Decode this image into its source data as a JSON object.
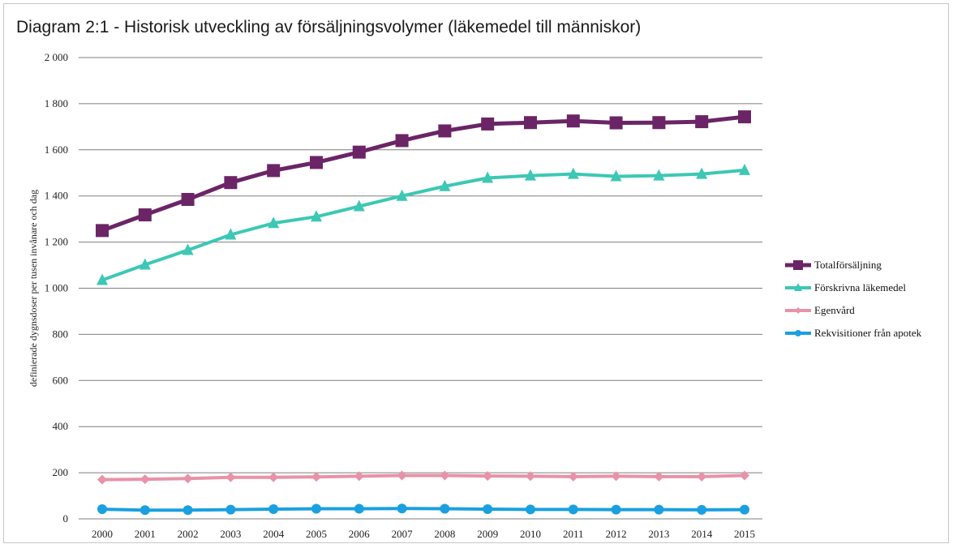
{
  "chart_data": {
    "type": "line",
    "title": "Diagram 2:1 - Historisk utveckling av försäljningsvolymer (läkemedel till människor)",
    "ylabel": "definierade dygnsdoser per tusen invånare och dag",
    "xlabel": "",
    "ylim": [
      0,
      2000
    ],
    "yticks": [
      0,
      200,
      400,
      600,
      800,
      1000,
      1200,
      1400,
      1600,
      1800,
      2000
    ],
    "ytick_labels": [
      "0",
      "200",
      "400",
      "600",
      "800",
      "1 000",
      "1 200",
      "1 400",
      "1 600",
      "1 800",
      "2 000"
    ],
    "categories": [
      "2000",
      "2001",
      "2002",
      "2003",
      "2004",
      "2005",
      "2006",
      "2007",
      "2008",
      "2009",
      "2010",
      "2011",
      "2012",
      "2013",
      "2014",
      "2015"
    ],
    "grid": "horizontal",
    "legend_position": "right",
    "series": [
      {
        "name": "Totalförsäljning",
        "color": "#6b2566",
        "marker": "square",
        "values": [
          1250,
          1318,
          1385,
          1458,
          1510,
          1545,
          1590,
          1640,
          1682,
          1712,
          1718,
          1725,
          1717,
          1718,
          1722,
          1743
        ]
      },
      {
        "name": "Förskrivna läkemedel",
        "color": "#3cc8b4",
        "marker": "triangle",
        "values": [
          1035,
          1102,
          1165,
          1232,
          1282,
          1310,
          1355,
          1400,
          1442,
          1478,
          1488,
          1495,
          1485,
          1488,
          1495,
          1512
        ]
      },
      {
        "name": "Egenvård",
        "color": "#e892a8",
        "marker": "diamond",
        "values": [
          170,
          172,
          175,
          180,
          180,
          182,
          185,
          188,
          188,
          186,
          185,
          183,
          185,
          183,
          183,
          188
        ]
      },
      {
        "name": "Rekvisitioner från apotek",
        "color": "#1aa0e0",
        "marker": "circle",
        "values": [
          42,
          38,
          38,
          40,
          42,
          44,
          44,
          45,
          44,
          42,
          41,
          41,
          40,
          40,
          39,
          40
        ]
      }
    ]
  }
}
